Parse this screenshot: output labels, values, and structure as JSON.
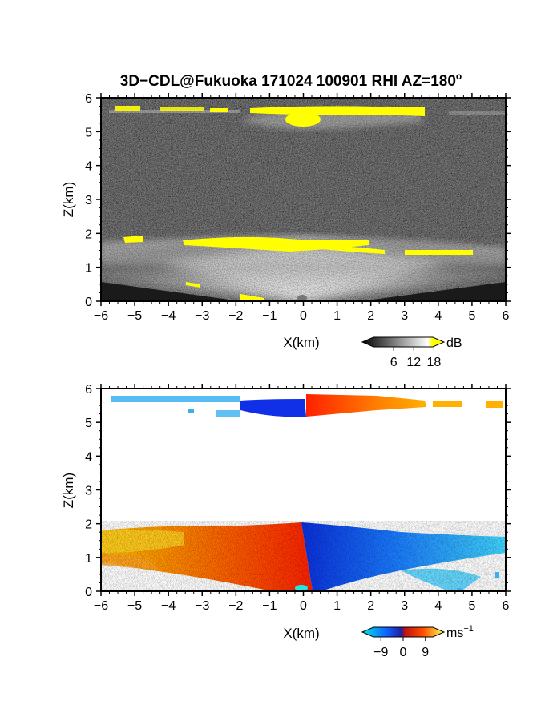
{
  "title": "3D−CDL@Fukuoka 171024 100901 RHI AZ=180",
  "title_superscript": "o",
  "chart_data": [
    {
      "type": "heatmap",
      "panel": "backscatter",
      "xlabel": "X(km)",
      "ylabel": "Z(km)",
      "xlim": [
        -6,
        6
      ],
      "ylim": [
        0,
        6
      ],
      "x_ticks": [
        "−6",
        "−5",
        "−4",
        "−3",
        "−2",
        "−1",
        "0",
        "1",
        "2",
        "3",
        "4",
        "5",
        "6"
      ],
      "y_ticks": [
        "0",
        "1",
        "2",
        "3",
        "4",
        "5",
        "6"
      ],
      "colorbar": {
        "unit": "dB",
        "tick_labels": [
          "6",
          "12",
          "18"
        ],
        "range": [
          0,
          21
        ],
        "colors": [
          "#000000",
          "#ffffff",
          "#ffff00"
        ]
      },
      "features": [
        {
          "name": "upper-cloud-layer",
          "x_range": [
            -6,
            6
          ],
          "z_range": [
            5.2,
            5.9
          ],
          "peak_dB": 18
        },
        {
          "name": "boundary-layer-top",
          "x_range": [
            -6,
            6
          ],
          "z_range": [
            1.3,
            1.9
          ],
          "peak_dB": 18
        },
        {
          "name": "boundary-layer-cone",
          "x_range": [
            -5.5,
            6
          ],
          "z_range": [
            0,
            1.9
          ],
          "peak_dB": 14
        }
      ]
    },
    {
      "type": "heatmap",
      "panel": "radial-velocity",
      "xlabel": "X(km)",
      "ylabel": "Z(km)",
      "xlim": [
        -6,
        6
      ],
      "ylim": [
        0,
        6
      ],
      "x_ticks": [
        "−6",
        "−5",
        "−4",
        "−3",
        "−2",
        "−1",
        "0",
        "1",
        "2",
        "3",
        "4",
        "5",
        "6"
      ],
      "y_ticks": [
        "0",
        "1",
        "2",
        "3",
        "4",
        "5",
        "6"
      ],
      "colorbar": {
        "unit": "ms",
        "unit_superscript": "−1",
        "tick_labels": [
          "−9",
          "0",
          "9"
        ],
        "range": [
          -12,
          12
        ],
        "colors": [
          "#00e0e0",
          "#1040ff",
          "#ff2000",
          "#ffff40"
        ]
      },
      "features": [
        {
          "name": "upper-layer-west",
          "x_range": [
            -6,
            -2
          ],
          "z_range": [
            5.4,
            5.9
          ],
          "velocity": -6
        },
        {
          "name": "upper-layer-center-west",
          "x_range": [
            -1.7,
            0
          ],
          "z_range": [
            5.3,
            5.8
          ],
          "velocity": -9
        },
        {
          "name": "upper-layer-east",
          "x_range": [
            0,
            4.5
          ],
          "z_range": [
            5.3,
            5.95
          ],
          "velocity": 5
        },
        {
          "name": "boundary-layer-west",
          "x_range": [
            -6,
            0
          ],
          "z_range": [
            0,
            2
          ],
          "velocity": 4
        },
        {
          "name": "boundary-layer-east",
          "x_range": [
            0,
            6
          ],
          "z_range": [
            0,
            1.9
          ],
          "velocity": -6
        }
      ]
    }
  ]
}
